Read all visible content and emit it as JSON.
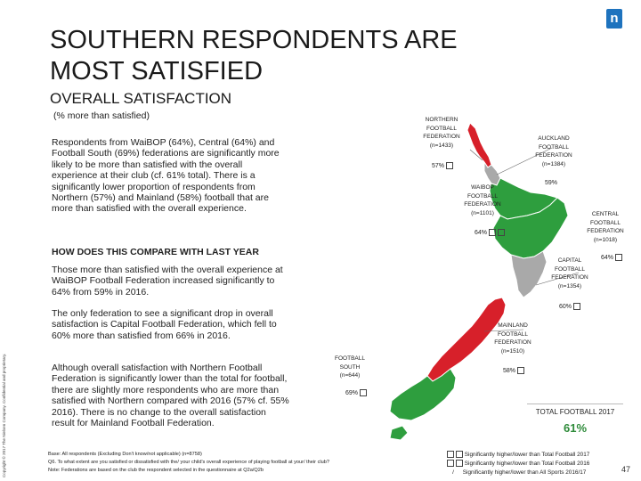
{
  "header": {
    "title": "SOUTHERN RESPONDENTS ARE MOST SATISFIED",
    "subtitle": "OVERALL SATISFACTION",
    "note": "(% more than satisfied)",
    "logo": "n"
  },
  "body": {
    "p1": "Respondents from WaiBOP (64%), Central (64%) and Football South (69%) federations are significantly more likely to be more than satisfied with the overall experience at their club (cf. 61% total). There is a significantly lower proportion of respondents from Northern (57%) and Mainland (58%) football that are more than satisfied with the overall experience.",
    "compare_heading": "HOW DOES THIS COMPARE WITH LAST YEAR",
    "p2": "Those more than satisfied with the overall experience at WaiBOP Football Federation increased significantly to 64% from 59% in 2016.",
    "p3": "The only federation to see a significant drop in overall satisfaction is Capital Football Federation, which fell to 60% more than satisfied from 66% in 2016.",
    "p4": "Although overall satisfaction with Northern Football Federation is significantly lower than the total for football, there are slightly more respondents who are more than satisfied with Northern compared with 2016 (57% cf. 55% 2016). There is no change to the overall satisfaction result for Mainland Football Federation."
  },
  "copyright": "Copyright © 2017 The Nielsen Company. Confidential and proprietary.",
  "footnotes": [
    "Base: All respondents (Excluding Don't know/not applicable) (n=8758)",
    "Q6. To what extent are you satisfied or dissatisfied with the/ your child's overall experience of playing football at your/ their club?",
    "Note: Federations are based on the club the respondent selected in the questionnaire at Q2a/Q2b"
  ],
  "map": {
    "colors": {
      "green": "#2e9e3e",
      "red": "#d7202a",
      "grey": "#a9a9a9",
      "outline": "#ffffff"
    },
    "federations": [
      {
        "id": "northern",
        "label": [
          "NORTHERN",
          "FOOTBALL",
          "FEDERATION",
          "(n=1433)"
        ],
        "pct": "57%",
        "status": "lower"
      },
      {
        "id": "auckland",
        "label": [
          "AUCKLAND",
          "FOOTBALL",
          "FEDERATION",
          "(n=1384)"
        ],
        "pct": "59%",
        "status": "same"
      },
      {
        "id": "waibop",
        "label": [
          "WAIBOP",
          "FOOTBALL",
          "FEDERATION",
          "(n=1101)"
        ],
        "pct": "64%",
        "status": "higher"
      },
      {
        "id": "central",
        "label": [
          "CENTRAL",
          "FOOTBALL",
          "FEDERATION",
          "(n=1018)"
        ],
        "pct": "64%",
        "status": "higher"
      },
      {
        "id": "capital",
        "label": [
          "CAPITAL",
          "FOOTBALL",
          "FEDERATION",
          "(n=1354)"
        ],
        "pct": "60%",
        "status": "same"
      },
      {
        "id": "mainland",
        "label": [
          "MAINLAND",
          "FOOTBALL",
          "FEDERATION",
          "(n=1510)"
        ],
        "pct": "58%",
        "status": "lower"
      },
      {
        "id": "south",
        "label": [
          "FOOTBALL",
          "SOUTH",
          "(n=644)"
        ],
        "pct": "69%",
        "status": "higher"
      }
    ]
  },
  "total": {
    "label": "TOTAL FOOTBALL 2017",
    "value": "61%"
  },
  "legend": [
    "Significantly higher/lower than Total Football 2017",
    "Significantly higher/lower than Total Football 2016",
    "Significantly higher/lower than All Sports 2016/17"
  ],
  "page_number": "47"
}
